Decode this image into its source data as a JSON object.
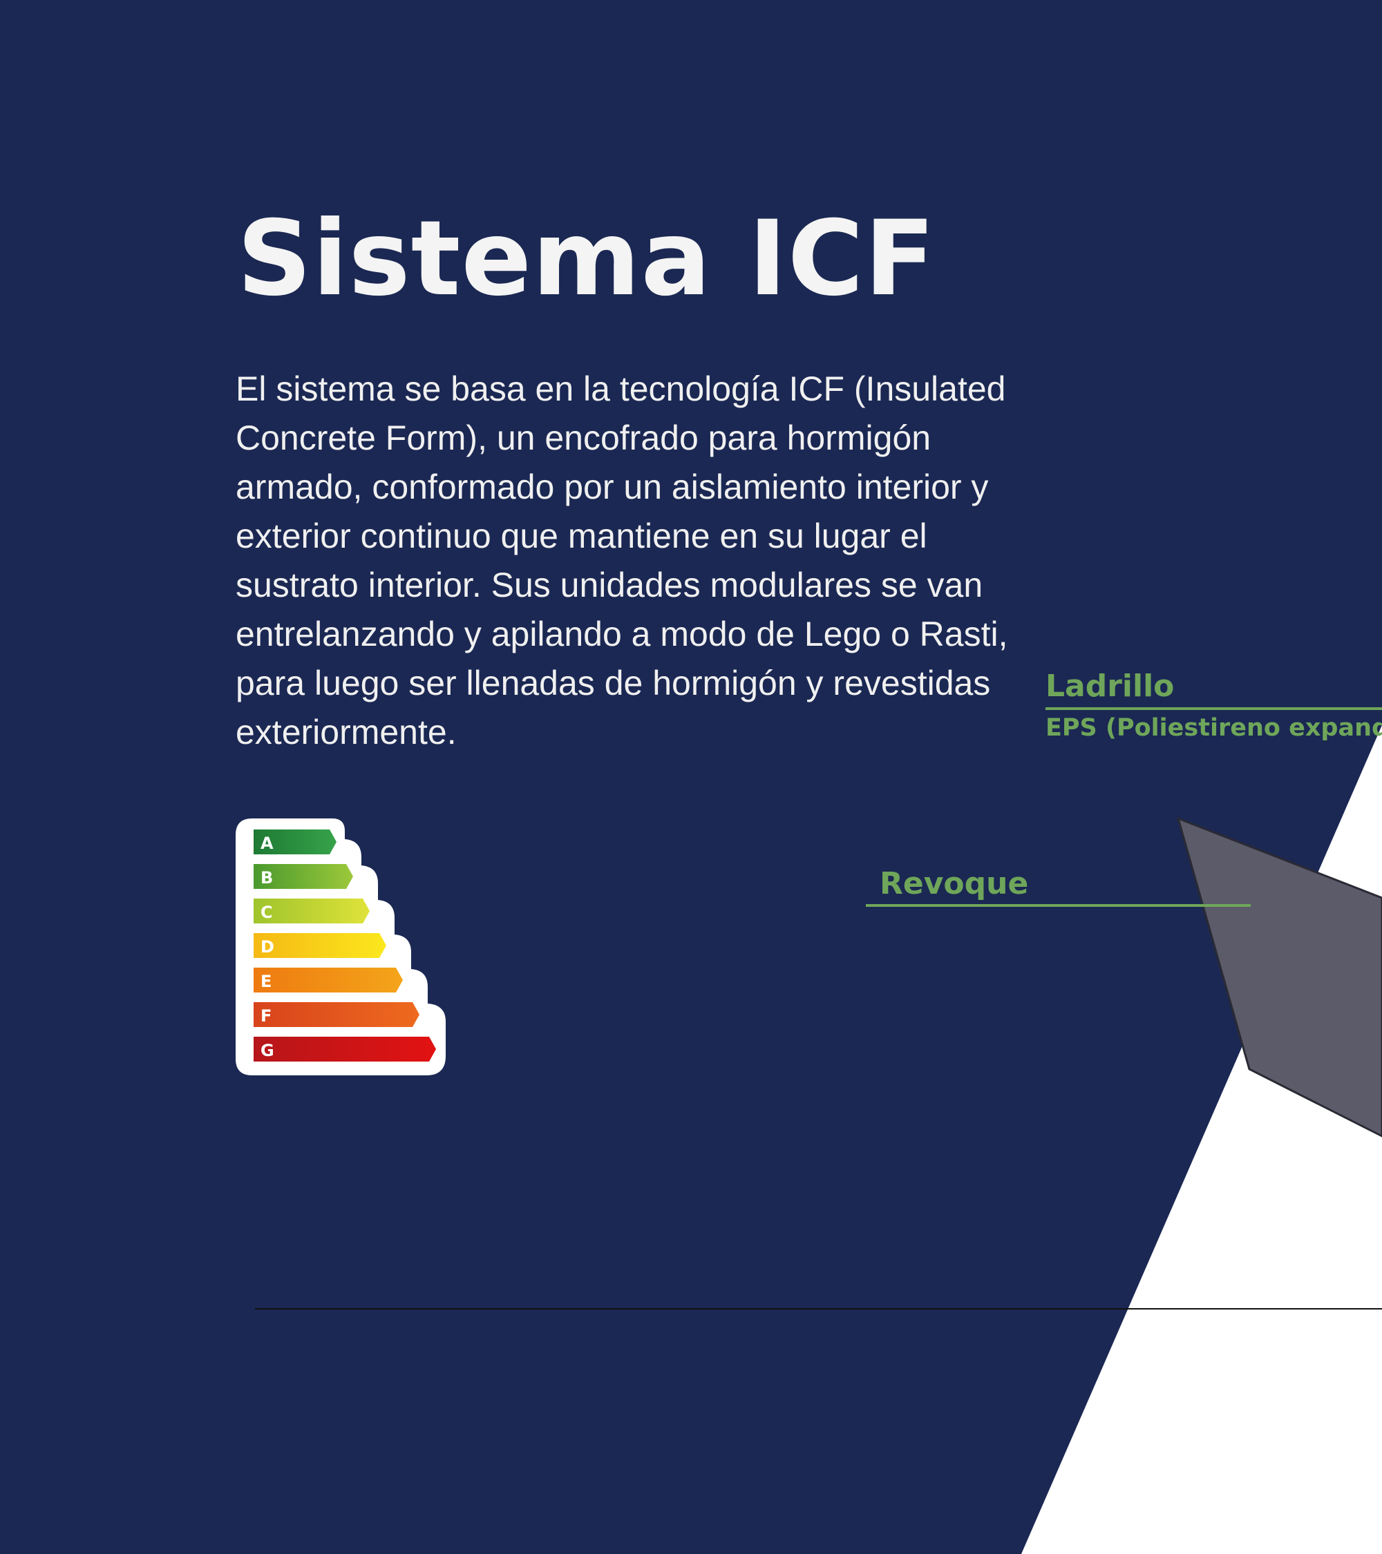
{
  "page": {
    "title": "Sistema ICF",
    "description": "El sistema se basa en la tecnología ICF (Insulated Concrete Form), un encofrado para hormigón armado, conformado por un aislamiento interior y exterior continuo que mantiene en su lugar el sustrato interior. Sus unidades modulares se van entrelanzando y apilando a modo de Lego o Rasti, para luego ser llenadas de hormigón y revestidas exteriormente."
  },
  "diagram": {
    "labels": {
      "ladrillo": "Ladrillo",
      "eps": "EPS (Poliestireno expandi",
      "revoque": "Revoque"
    }
  },
  "energy_rating": {
    "classes": [
      "A",
      "B",
      "C",
      "D",
      "E",
      "F",
      "G"
    ]
  },
  "colors": {
    "background": "#1b2853",
    "accent_label": "#6fa65a",
    "panel": "#5b5b69",
    "energy": [
      "#1f8a3b",
      "#5ea834",
      "#c4d82a",
      "#f7d414",
      "#f39a10",
      "#e8631c",
      "#d51c1c"
    ]
  }
}
